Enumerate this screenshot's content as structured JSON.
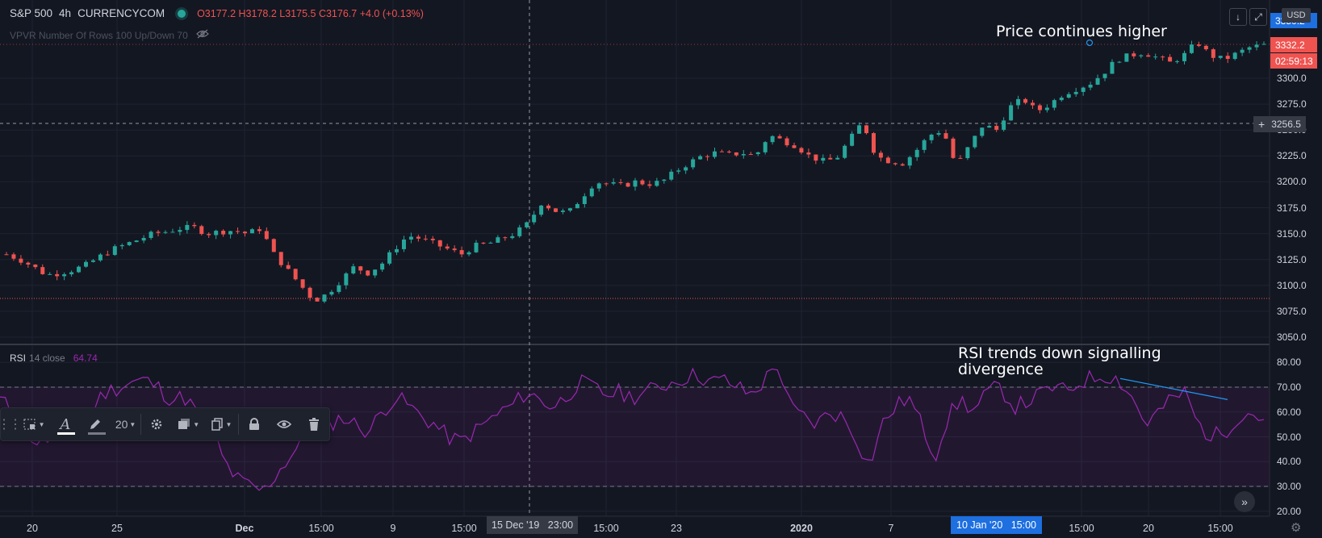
{
  "header": {
    "symbol": "S&P 500",
    "timeframe": "4h",
    "exchange": "CURRENCYCOM",
    "open": "O3177.2",
    "high": "H3178.2",
    "low": "L3175.5",
    "close": "C3176.7",
    "change": "+4.0 (+0.13%)"
  },
  "vpvr": {
    "label": "VPVR Number Of Rows 100 Up/Down 70"
  },
  "rsi": {
    "name": "RSI",
    "params": "14 close",
    "value": "64.74"
  },
  "annotations": {
    "price": "Price continues higher",
    "rsi": "RSI trends down signalling\ndivergence"
  },
  "price_axis": {
    "currency": "USD",
    "ticks": [
      "3300.0",
      "3275.0",
      "3250.0",
      "3225.0",
      "3200.0",
      "3175.0",
      "3150.0",
      "3125.0",
      "3100.0",
      "3075.0",
      "3050.0"
    ],
    "last_price": "3332.2",
    "countdown": "02:59:13",
    "top_partial": "3350.2",
    "crosshair_price": "3256.5"
  },
  "rsi_axis": {
    "ticks": [
      "80.00",
      "70.00",
      "60.00",
      "50.00",
      "40.00",
      "30.00",
      "20.00"
    ]
  },
  "time_axis": {
    "labels": [
      "20",
      "25",
      "Dec",
      "15:00",
      "9",
      "15:00",
      "15:00",
      "23",
      "2020",
      "7",
      "15:00",
      "20",
      "15:00"
    ],
    "crosshair_time": "15 Dec '19   23:00",
    "highlight_time": "10 Jan '20   15:00"
  },
  "toolbar": {
    "line_width": "20"
  },
  "colors": {
    "background": "#131722",
    "up": "#26a69a",
    "down": "#ef5350",
    "rsi_line": "#9c27b0",
    "trendline": "#2196f3",
    "accent": "#1e6fe0"
  },
  "chart_data": [
    {
      "type": "candlestick",
      "title": "S&P 500 4h CURRENCYCOM",
      "ylim": [
        3045,
        3355
      ],
      "x_range": [
        "19 Nov 2019",
        "17 Jan 2020"
      ],
      "close_path": [
        3130,
        3125,
        3118,
        3110,
        3112,
        3115,
        3120,
        3128,
        3135,
        3140,
        3145,
        3150,
        3152,
        3155,
        3156,
        3150,
        3152,
        3153,
        3150,
        3155,
        3130,
        3115,
        3100,
        3085,
        3092,
        3105,
        3118,
        3112,
        3120,
        3135,
        3148,
        3145,
        3140,
        3135,
        3130,
        3138,
        3140,
        3145,
        3150,
        3160,
        3180,
        3172,
        3170,
        3185,
        3200,
        3198,
        3196,
        3200,
        3198,
        3200,
        3210,
        3218,
        3225,
        3228,
        3226,
        3228,
        3225,
        3245,
        3240,
        3235,
        3225,
        3220,
        3222,
        3240,
        3258,
        3225,
        3220,
        3218,
        3230,
        3245,
        3250,
        3215,
        3235,
        3255,
        3250,
        3272,
        3280,
        3268,
        3275,
        3285,
        3290,
        3295,
        3305,
        3318,
        3322,
        3325,
        3320,
        3315,
        3322,
        3335,
        3322,
        3318,
        3324,
        3330,
        3332
      ],
      "horizontal_line": 3087,
      "annotation": "Price continues higher"
    },
    {
      "type": "line",
      "title": "RSI 14 close",
      "ylim": [
        20,
        80
      ],
      "levels": [
        70,
        30
      ],
      "values": [
        65,
        60,
        52,
        47,
        50,
        48,
        55,
        62,
        68,
        70,
        72,
        73,
        70,
        65,
        66,
        60,
        55,
        40,
        33,
        30,
        28,
        35,
        42,
        48,
        52,
        55,
        58,
        55,
        52,
        60,
        66,
        63,
        58,
        55,
        50,
        48,
        52,
        56,
        60,
        63,
        68,
        65,
        62,
        66,
        72,
        70,
        67,
        68,
        66,
        68,
        70,
        72,
        74,
        75,
        72,
        73,
        70,
        67,
        72,
        80,
        62,
        58,
        55,
        60,
        58,
        50,
        38,
        55,
        62,
        66,
        55,
        42,
        58,
        65,
        60,
        68,
        70,
        62,
        64,
        67,
        70,
        68,
        72,
        74,
        75,
        73,
        66,
        55,
        60,
        65,
        68,
        55,
        50,
        52,
        58,
        60,
        57
      ],
      "trendline_from": 73.5,
      "trendline_to": 65,
      "annotation": "RSI trends down signalling divergence"
    }
  ]
}
